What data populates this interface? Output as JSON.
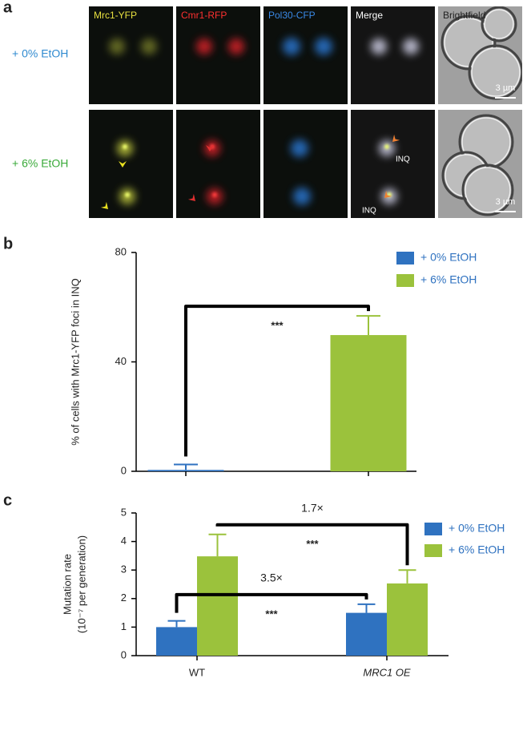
{
  "panel_a": {
    "label": "a",
    "rows": [
      "+ 0% EtOH",
      "+ 6% EtOH"
    ],
    "channels": [
      "Mrc1-YFP",
      "Cmr1-RFP",
      "Pol30-CFP",
      "Merge",
      "Brightfield"
    ],
    "scale_bar": "3 µm",
    "inq": "INQ"
  },
  "chart_data": [
    {
      "type": "bar",
      "panel_label": "b",
      "ylabel": "% of cells with Mrc1-YFP foci in INQ",
      "categories": [
        null,
        null
      ],
      "series": [
        {
          "name": "+ 0% EtOH",
          "color": "#2f72c0",
          "values": [
            0.5,
            null
          ],
          "errors": [
            2.0,
            null
          ]
        },
        {
          "name": "+ 6% EtOH",
          "color": "#9bc23c",
          "values": [
            null,
            49.8
          ],
          "errors": [
            null,
            7.0
          ]
        }
      ],
      "ylim": [
        0,
        80
      ],
      "yticks": [
        0,
        40,
        80
      ],
      "annotations": [
        {
          "text": "***"
        }
      ]
    },
    {
      "type": "bar",
      "panel_label": "c",
      "ylabel": [
        "Mutation rate",
        "(10⁻⁷ per generation)"
      ],
      "categories": [
        "WT",
        "MRC1 OE"
      ],
      "series": [
        {
          "name": "+ 0% EtOH",
          "color": "#2f72c0",
          "values": [
            1.0,
            1.5
          ],
          "errors": [
            0.22,
            0.3
          ]
        },
        {
          "name": "+ 6% EtOH",
          "color": "#9bc23c",
          "values": [
            3.48,
            2.53
          ],
          "errors": [
            0.77,
            0.47
          ]
        }
      ],
      "ylim": [
        0,
        5
      ],
      "yticks": [
        0,
        1,
        2,
        3,
        4,
        5
      ],
      "annotations": [
        {
          "ratio": "3.5×",
          "text": "***"
        },
        {
          "ratio": "1.7×",
          "text": "***"
        }
      ]
    }
  ]
}
